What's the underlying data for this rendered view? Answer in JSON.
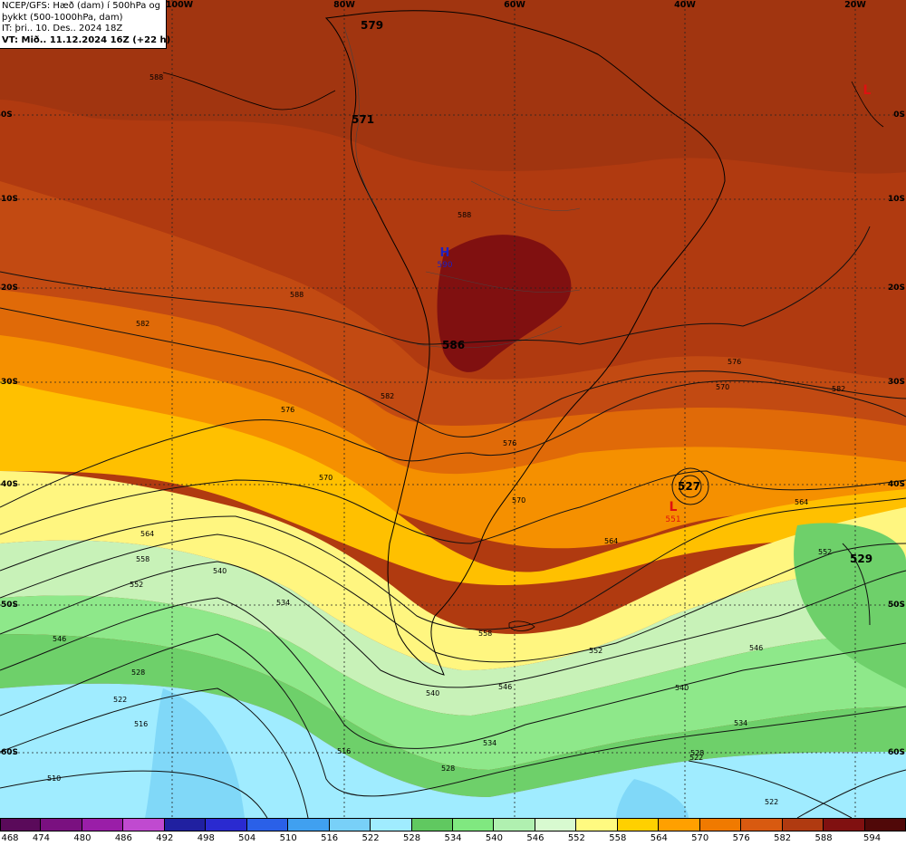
{
  "info": {
    "line1": "NCEP/GFS: Hæð (dam) í 500hPa og",
    "line2": "þykkt (500-1000hPa, dam)",
    "line3": "IT: þri.. 10. Des.. 2024 18Z",
    "line4": "VT: Mið.. 11.12.2024 16Z (+22 h)"
  },
  "longitude_labels": [
    "100W",
    "80W",
    "60W",
    "40W",
    "20W"
  ],
  "latitude_labels": [
    "0S",
    "10S",
    "20S",
    "30S",
    "40S",
    "50S",
    "60S"
  ],
  "colorbar": {
    "ticks": [
      "468",
      "474",
      "480",
      "486",
      "492",
      "498",
      "504",
      "510",
      "516",
      "522",
      "528",
      "534",
      "540",
      "546",
      "552",
      "558",
      "564",
      "570",
      "576",
      "582",
      "588",
      "594"
    ],
    "colors": [
      "#5a0a5a",
      "#7a1080",
      "#9a1ea8",
      "#c04ad0",
      "#2020a0",
      "#2a2ad0",
      "#2a60e8",
      "#40a0f0",
      "#78d0f8",
      "#a0ecff",
      "#60c860",
      "#80e880",
      "#b0f0b0",
      "#d8fad0",
      "#fffa80",
      "#ffd000",
      "#ffa000",
      "#f07a00",
      "#d85a10",
      "#b03a10",
      "#801010",
      "#500808"
    ]
  },
  "legend_colors": {
    "ocean_outline": "#000000",
    "height_contour": "#000000",
    "high_marker": "#2020c0",
    "low_marker": "#e01010"
  },
  "contour_labels": [
    "579",
    "571",
    "588",
    "588",
    "588",
    "582",
    "582",
    "576",
    "570",
    "564",
    "558",
    "552",
    "546",
    "540",
    "534",
    "528",
    "522",
    "516",
    "510",
    "586",
    "576",
    "570",
    "564",
    "558",
    "552",
    "546",
    "540",
    "534",
    "528",
    "522",
    "527",
    "529",
    "582",
    "576",
    "570",
    "564",
    "552",
    "546",
    "540",
    "534",
    "528",
    "522",
    "516"
  ],
  "pressure_centers": [
    {
      "type": "H",
      "value": "590"
    },
    {
      "type": "L",
      "value": "551"
    },
    {
      "type": "L",
      "value": ""
    }
  ]
}
